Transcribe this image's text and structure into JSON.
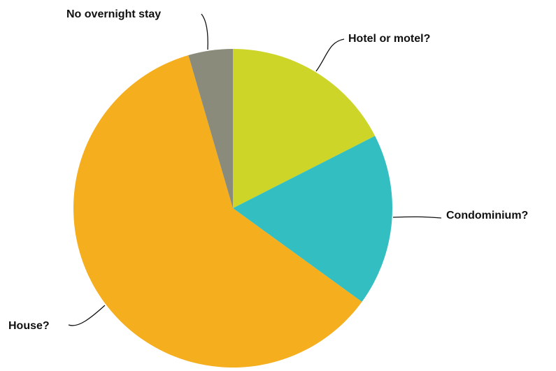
{
  "chart_data": {
    "type": "pie",
    "title": "",
    "start_angle_deg": 0,
    "direction": "clockwise",
    "slices": [
      {
        "label": "Hotel or motel?",
        "value": 17.5,
        "color": "#CDD628"
      },
      {
        "label": "Condominium?",
        "value": 17.5,
        "color": "#33BFC1"
      },
      {
        "label": "House?",
        "value": 60.5,
        "color": "#F5AE1E"
      },
      {
        "label": "No overnight stay",
        "value": 4.5,
        "color": "#8A8B7A"
      }
    ],
    "legend": "none",
    "data_labels": "outside-with-leader-lines"
  }
}
